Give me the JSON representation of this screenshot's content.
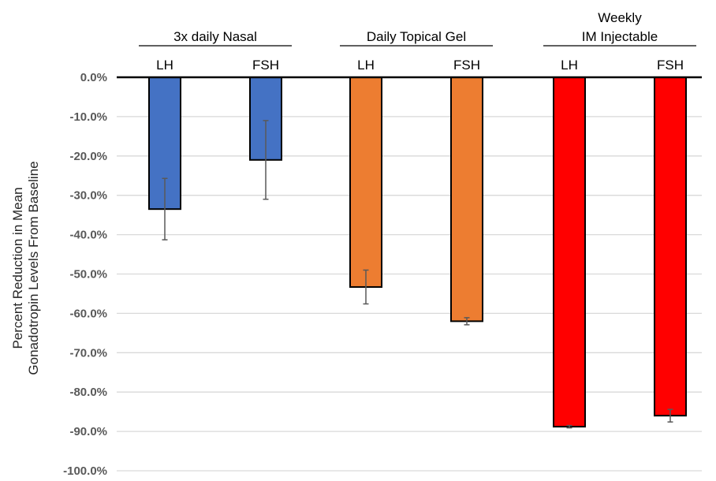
{
  "chart_data": {
    "type": "bar",
    "ylabel": [
      "Percent Reduction in Mean",
      "Gonadotropin Levels From Baseline"
    ],
    "ylim": [
      -100,
      0
    ],
    "ytick_step": 10,
    "ytick_labels": [
      "0.0%",
      "-10.0%",
      "-20.0%",
      "-30.0%",
      "-40.0%",
      "-50.0%",
      "-60.0%",
      "-70.0%",
      "-80.0%",
      "-90.0%",
      "-100.0%"
    ],
    "grid": true,
    "groups": [
      {
        "label": [
          "3x daily Nasal"
        ],
        "color": "#4472C4",
        "bars": [
          {
            "category": "LH",
            "value": -33.5,
            "error": 7.8
          },
          {
            "category": "FSH",
            "value": -21.0,
            "error": 10.0
          }
        ]
      },
      {
        "label": [
          "Daily Topical Gel"
        ],
        "color": "#ED7D31",
        "bars": [
          {
            "category": "LH",
            "value": -53.3,
            "error": 4.3
          },
          {
            "category": "FSH",
            "value": -62.0,
            "error": 0.9
          }
        ]
      },
      {
        "label": [
          "Weekly",
          "IM Injectable"
        ],
        "color": "#FF0000",
        "bars": [
          {
            "category": "LH",
            "value": -88.8,
            "error": 0.3
          },
          {
            "category": "FSH",
            "value": -86.0,
            "error": 1.6
          }
        ]
      }
    ]
  }
}
